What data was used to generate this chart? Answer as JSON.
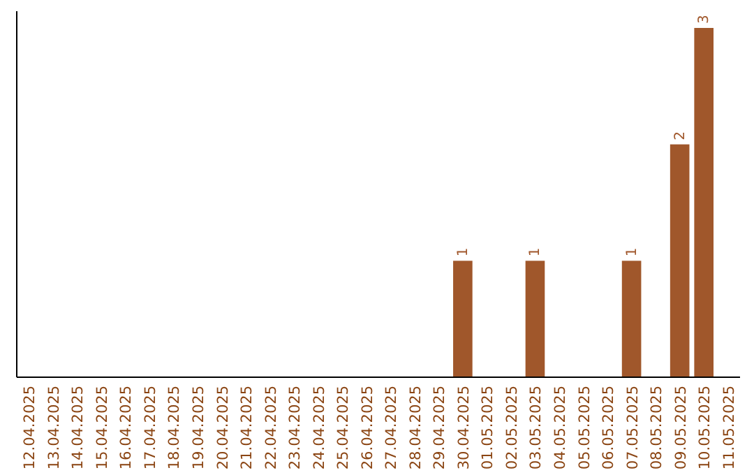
{
  "chart_data": {
    "type": "bar",
    "categories": [
      "12.04.2025",
      "13.04.2025",
      "14.04.2025",
      "15.04.2025",
      "16.04.2025",
      "17.04.2025",
      "18.04.2025",
      "19.04.2025",
      "20.04.2025",
      "21.04.2025",
      "22.04.2025",
      "23.04.2025",
      "24.04.2025",
      "25.04.2025",
      "26.04.2025",
      "27.04.2025",
      "28.04.2025",
      "29.04.2025",
      "30.04.2025",
      "01.05.2025",
      "02.05.2025",
      "03.05.2025",
      "04.05.2025",
      "05.05.2025",
      "06.05.2025",
      "07.05.2025",
      "08.05.2025",
      "09.05.2025",
      "10.05.2025",
      "11.05.2025"
    ],
    "values": [
      null,
      null,
      null,
      null,
      null,
      null,
      null,
      null,
      null,
      null,
      null,
      null,
      null,
      null,
      null,
      null,
      null,
      null,
      1,
      null,
      null,
      1,
      null,
      null,
      null,
      1,
      null,
      2,
      3,
      null
    ],
    "color": "#a0572b",
    "data_labels": true,
    "tick_labels": "x"
  }
}
